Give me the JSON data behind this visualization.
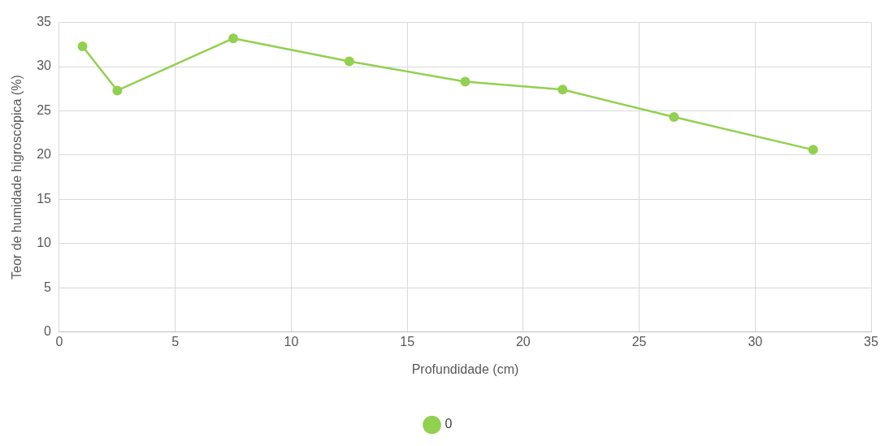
{
  "chart_data": {
    "type": "line",
    "xlabel": "Profundidade (cm)",
    "ylabel": "Teor de humidade higroscópica (%)",
    "x": [
      1,
      2.5,
      7.5,
      12.5,
      17.5,
      21.7,
      26.5,
      32.5
    ],
    "series": [
      {
        "name": "0",
        "color": "#92d050",
        "values": [
          32.3,
          27.3,
          33.2,
          30.6,
          28.3,
          27.4,
          24.3,
          20.6
        ]
      }
    ],
    "xlim": [
      0,
      35
    ],
    "xticks": [
      0,
      5,
      10,
      15,
      20,
      25,
      30,
      35
    ],
    "ylim": [
      0,
      35
    ],
    "yticks": [
      0,
      5,
      10,
      15,
      20,
      25,
      30,
      35
    ],
    "grid": true,
    "legend": "bottom",
    "marker": "circle",
    "line_style": "solid"
  }
}
